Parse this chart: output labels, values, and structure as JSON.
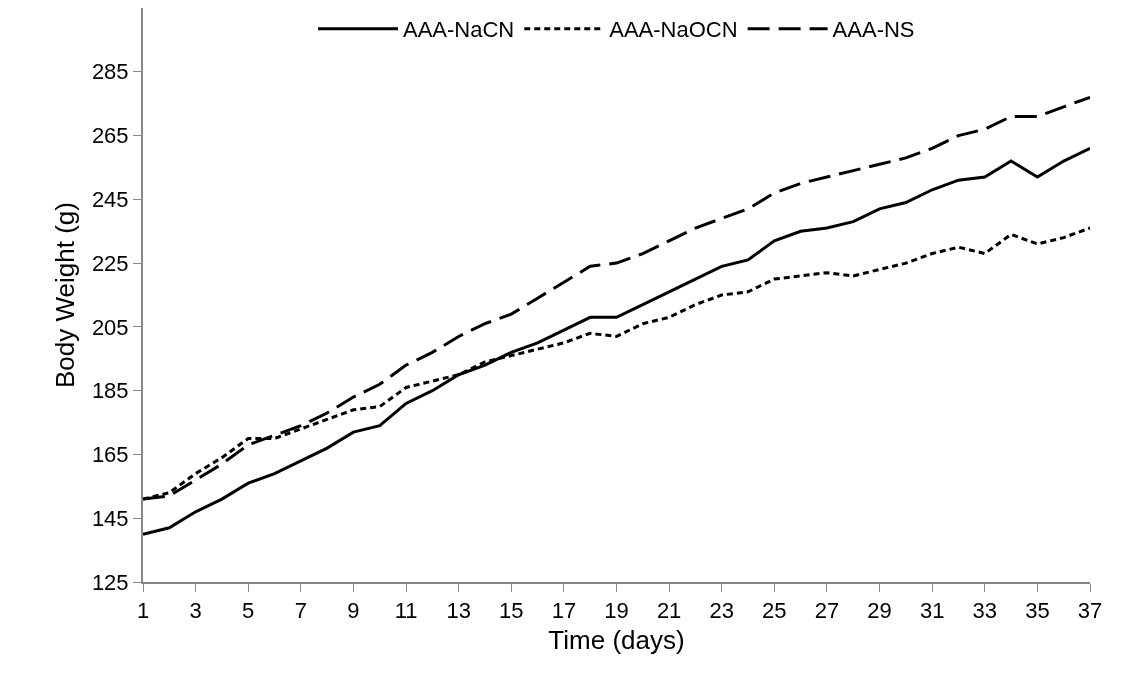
{
  "chart_data": {
    "type": "line",
    "xlabel": "Time (days)",
    "ylabel": "Body Weight (g)",
    "x": [
      1,
      2,
      3,
      4,
      5,
      6,
      7,
      8,
      9,
      10,
      11,
      12,
      13,
      14,
      15,
      16,
      17,
      18,
      19,
      20,
      21,
      22,
      23,
      24,
      25,
      26,
      27,
      28,
      29,
      30,
      31,
      32,
      33,
      34,
      35,
      36,
      37
    ],
    "xlim": [
      1,
      37
    ],
    "xticks": [
      1,
      3,
      5,
      7,
      9,
      11,
      13,
      15,
      17,
      19,
      21,
      23,
      25,
      27,
      29,
      31,
      33,
      35,
      37
    ],
    "ylim": [
      125,
      305
    ],
    "yticks": [
      125,
      145,
      165,
      185,
      205,
      225,
      245,
      265,
      285
    ],
    "grid": false,
    "legend": "top",
    "marker": "none",
    "series": [
      {
        "name": "AAA-NaCN",
        "color": "#000000",
        "line_style": "solid",
        "values": [
          140,
          142,
          147,
          151,
          156,
          159,
          163,
          167,
          172,
          174,
          181,
          185,
          190,
          193,
          197,
          200,
          204,
          208,
          208,
          212,
          216,
          220,
          224,
          226,
          232,
          235,
          236,
          238,
          242,
          244,
          248,
          251,
          252,
          257,
          252,
          257,
          261
        ]
      },
      {
        "name": "AAA-NaOCN",
        "color": "#000000",
        "line_style": "dotted",
        "values": [
          151,
          153,
          159,
          164,
          170,
          170,
          173,
          176,
          179,
          180,
          186,
          188,
          190,
          194,
          196,
          198,
          200,
          203,
          202,
          206,
          208,
          212,
          215,
          216,
          220,
          221,
          222,
          221,
          223,
          225,
          228,
          230,
          228,
          234,
          231,
          233,
          236
        ]
      },
      {
        "name": "AAA-NS",
        "color": "#000000",
        "line_style": "dashed",
        "values": [
          151,
          152,
          157,
          162,
          168,
          171,
          174,
          178,
          183,
          187,
          193,
          197,
          202,
          206,
          209,
          214,
          219,
          224,
          225,
          228,
          232,
          236,
          239,
          242,
          247,
          250,
          252,
          254,
          256,
          258,
          261,
          265,
          267,
          271,
          271,
          274,
          277
        ]
      }
    ]
  }
}
